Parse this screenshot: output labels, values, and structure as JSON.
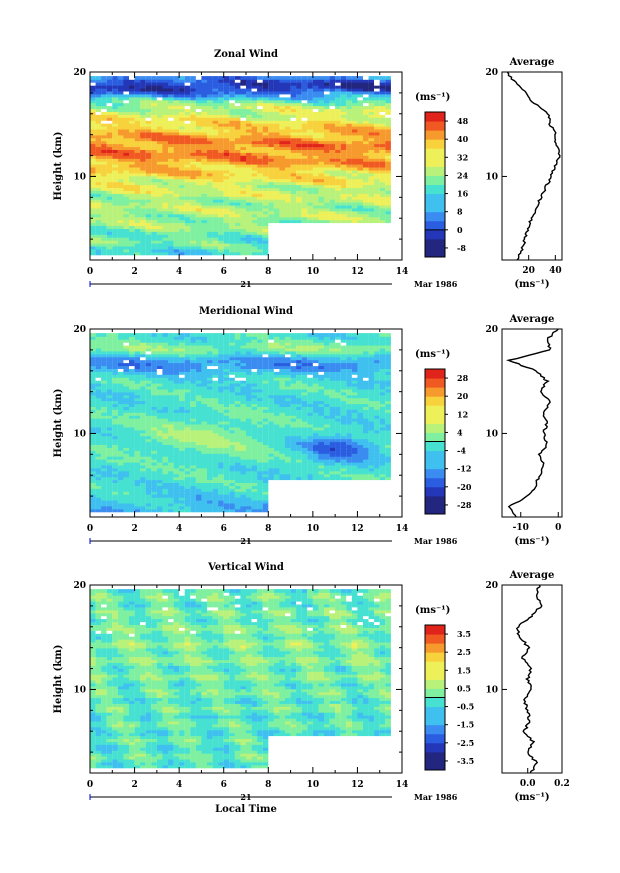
{
  "chart_data": [
    {
      "type": "heatmap",
      "title": "Zonal Wind",
      "ylabel": "Height (km)",
      "x_ticks": [
        "0",
        "2",
        "4",
        "6",
        "8",
        "10",
        "12",
        "14"
      ],
      "y_ticks": [
        "10",
        "20"
      ],
      "date_day": "21",
      "date_label": "Mar 1986",
      "xlim": [
        0,
        14
      ],
      "ylim": [
        2,
        20
      ],
      "colorbar": {
        "unit": "(ms⁻¹)",
        "ticks": [
          "48",
          "40",
          "32",
          "24",
          "16",
          "8",
          "0",
          "-8"
        ],
        "min": -12,
        "max": 52
      },
      "average": {
        "title": "Average",
        "x_ticks": [
          "20",
          "40"
        ],
        "xlabel": "(ms⁻¹)",
        "y_ticks": [
          "10",
          "20"
        ],
        "xlim": [
          0,
          45
        ],
        "profile": [
          [
            2,
            12
          ],
          [
            3,
            15
          ],
          [
            4,
            17
          ],
          [
            5,
            19
          ],
          [
            6,
            22
          ],
          [
            7,
            26
          ],
          [
            8,
            29
          ],
          [
            9,
            33
          ],
          [
            10,
            37
          ],
          [
            11,
            40
          ],
          [
            12,
            43
          ],
          [
            13,
            41
          ],
          [
            14,
            40
          ],
          [
            15,
            36
          ],
          [
            16,
            35
          ],
          [
            17,
            24
          ],
          [
            18,
            18
          ],
          [
            19,
            10
          ],
          [
            20,
            4
          ]
        ]
      }
    },
    {
      "type": "heatmap",
      "title": "Meridional Wind",
      "ylabel": "Height (km)",
      "x_ticks": [
        "0",
        "2",
        "4",
        "6",
        "8",
        "10",
        "12",
        "14"
      ],
      "y_ticks": [
        "10",
        "20"
      ],
      "date_day": "21",
      "date_label": "Mar 1986",
      "xlim": [
        0,
        14
      ],
      "ylim": [
        2,
        20
      ],
      "colorbar": {
        "unit": "(ms⁻¹)",
        "ticks": [
          "28",
          "20",
          "12",
          "4",
          "-4",
          "-12",
          "-20",
          "-28"
        ],
        "min": -32,
        "max": 32
      },
      "average": {
        "title": "Average",
        "x_ticks": [
          "-10",
          "0"
        ],
        "xlabel": "(ms⁻¹)",
        "y_ticks": [
          "10",
          "20"
        ],
        "xlim": [
          -15,
          1
        ],
        "profile": [
          [
            2,
            -11
          ],
          [
            3,
            -13
          ],
          [
            4,
            -8
          ],
          [
            5,
            -6
          ],
          [
            6,
            -5
          ],
          [
            7,
            -4
          ],
          [
            8,
            -5
          ],
          [
            9,
            -3
          ],
          [
            10,
            -4
          ],
          [
            11,
            -3
          ],
          [
            12,
            -4
          ],
          [
            13,
            -2
          ],
          [
            14,
            -5
          ],
          [
            15,
            -3
          ],
          [
            16,
            -6
          ],
          [
            17,
            -13
          ],
          [
            18,
            -2
          ],
          [
            19,
            -3
          ],
          [
            20,
            0
          ]
        ]
      }
    },
    {
      "type": "heatmap",
      "title": "Vertical Wind",
      "ylabel": "Height (km)",
      "xlabel": "Local Time",
      "x_ticks": [
        "0",
        "2",
        "4",
        "6",
        "8",
        "10",
        "12",
        "14"
      ],
      "y_ticks": [
        "10",
        "20"
      ],
      "date_day": "21",
      "date_label": "Mar 1986",
      "xlim": [
        0,
        14
      ],
      "ylim": [
        2,
        20
      ],
      "colorbar": {
        "unit": "(ms⁻¹)",
        "ticks": [
          "3.5",
          "2.5",
          "1.5",
          "0.5",
          "-0.5",
          "-1.5",
          "-2.5",
          "-3.5"
        ],
        "min": -4,
        "max": 4
      },
      "average": {
        "title": "Average",
        "x_ticks": [
          "0.0",
          "0.2"
        ],
        "xlabel": "(ms⁻¹)",
        "y_ticks": [
          "10",
          "20"
        ],
        "xlim": [
          -0.15,
          0.2
        ],
        "profile": [
          [
            2,
            0.02
          ],
          [
            3,
            0.05
          ],
          [
            4,
            0.0
          ],
          [
            5,
            0.03
          ],
          [
            6,
            -0.02
          ],
          [
            7,
            0.01
          ],
          [
            8,
            0.0
          ],
          [
            9,
            -0.02
          ],
          [
            10,
            0.02
          ],
          [
            11,
            0.0
          ],
          [
            12,
            0.02
          ],
          [
            13,
            -0.03
          ],
          [
            14,
            0.01
          ],
          [
            15,
            -0.05
          ],
          [
            16,
            -0.06
          ],
          [
            17,
            0.02
          ],
          [
            18,
            0.08
          ],
          [
            19,
            0.05
          ],
          [
            20,
            0.07
          ]
        ]
      }
    }
  ],
  "colors": {
    "palette": [
      "#23267f",
      "#2437b8",
      "#2a5de0",
      "#3a8cf0",
      "#3fc0ef",
      "#47e1d1",
      "#7ff0a0",
      "#b8f27a",
      "#eef05a",
      "#f7d23c",
      "#f79a2e",
      "#f05a22",
      "#e0241c"
    ]
  }
}
